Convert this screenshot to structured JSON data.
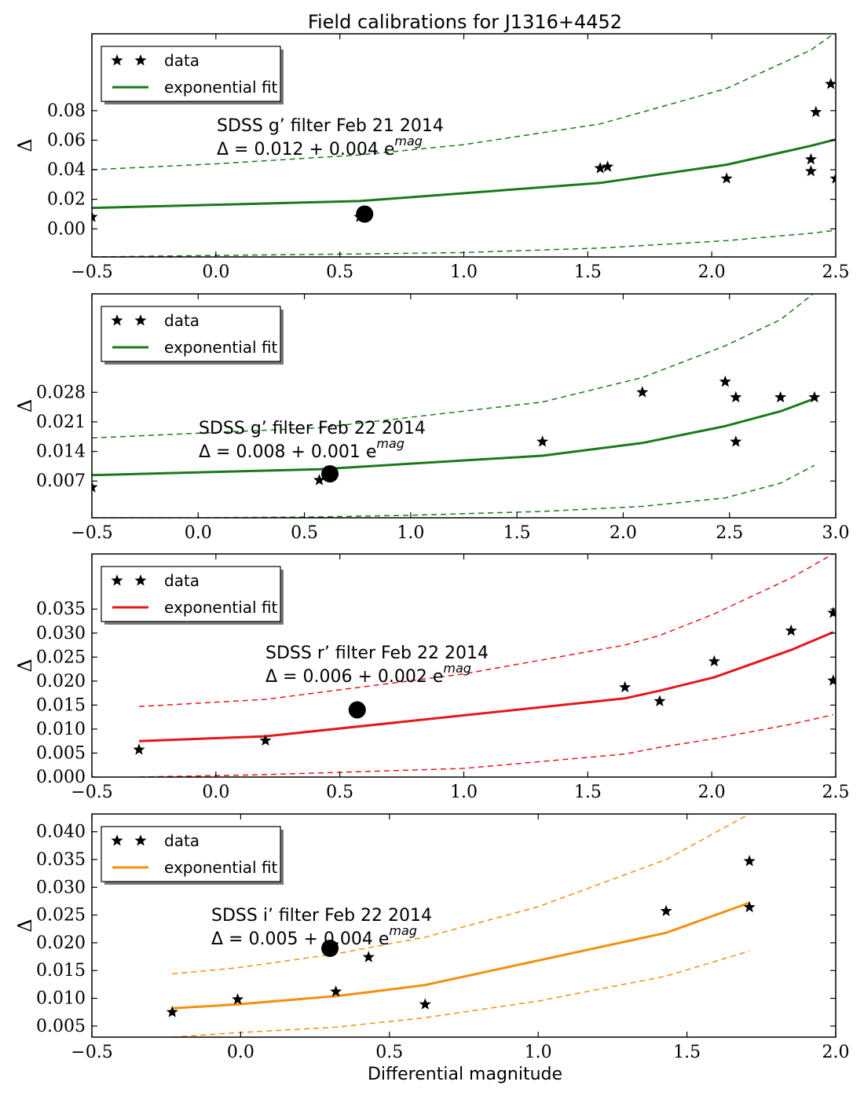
{
  "title": "Field calibrations for J1316+4452",
  "xlabel": "Differential magnitude",
  "chart_data": [
    {
      "type": "scatter",
      "title": "",
      "xlabel": "",
      "ylabel": "Δ",
      "xlim": [
        -0.5,
        2.5
      ],
      "ylim": [
        -0.019,
        0.132
      ],
      "xticks": [
        "−0.5",
        "0.0",
        "0.5",
        "1.0",
        "1.5",
        "2.0",
        "2.5"
      ],
      "xtick_values": [
        -0.5,
        0,
        0.5,
        1.0,
        1.5,
        2.0,
        2.5
      ],
      "yticks": [
        "0.00",
        "0.02",
        "0.04",
        "0.06",
        "0.08"
      ],
      "ytick_values": [
        0.0,
        0.02,
        0.04,
        0.06,
        0.08
      ],
      "color": "#1a7a1a",
      "legend": [
        "data",
        "exponential fit"
      ],
      "annotation": {
        "line1": "SDSS g’ filter Feb 21 2014",
        "line2_prefix": "Δ = 0.012 + 0.004 e",
        "line2_sup": "mag"
      },
      "data_points": {
        "x": [
          -0.5,
          0.58,
          1.55,
          1.58,
          2.06,
          2.4,
          2.4,
          2.42,
          2.48,
          2.5
        ],
        "y": [
          0.008,
          0.008,
          0.041,
          0.042,
          0.034,
          0.039,
          0.047,
          0.079,
          0.098,
          0.034
        ]
      },
      "target": {
        "x": 0.6,
        "y": 0.01
      },
      "fit": {
        "x": [
          -0.5,
          0.58,
          1.55,
          2.06,
          2.4,
          2.5
        ],
        "y": [
          0.0142,
          0.0188,
          0.0311,
          0.0434,
          0.0562,
          0.0605
        ]
      },
      "fit_upper": {
        "x": [
          -0.5,
          0.0,
          0.58,
          1.0,
          1.55,
          2.06,
          2.4,
          2.5
        ],
        "y": [
          0.04,
          0.044,
          0.05,
          0.057,
          0.071,
          0.095,
          0.121,
          0.133
        ]
      },
      "fit_lower": {
        "x": [
          -0.5,
          0.0,
          0.58,
          1.0,
          1.55,
          2.06,
          2.4,
          2.5
        ],
        "y": [
          -0.019,
          -0.018,
          -0.017,
          -0.016,
          -0.013,
          -0.008,
          -0.003,
          -0.001
        ]
      }
    },
    {
      "type": "scatter",
      "title": "",
      "xlabel": "",
      "ylabel": "Δ",
      "xlim": [
        -0.5,
        3.0
      ],
      "ylim": [
        -0.0017,
        0.0513
      ],
      "xticks": [
        "−0.5",
        "0.0",
        "0.5",
        "1.0",
        "1.5",
        "2.0",
        "2.5",
        "3.0"
      ],
      "xtick_values": [
        -0.5,
        0,
        0.5,
        1.0,
        1.5,
        2.0,
        2.5,
        3.0
      ],
      "yticks": [
        "0.007",
        "0.014",
        "0.021",
        "0.028"
      ],
      "ytick_values": [
        0.007,
        0.014,
        0.021,
        0.028
      ],
      "color": "#1a7a1a",
      "legend": [
        "data",
        "exponential fit"
      ],
      "annotation": {
        "line1": "SDSS g’ filter Feb 22 2014",
        "line2_prefix": "Δ = 0.008 + 0.001 e",
        "line2_sup": "mag"
      },
      "data_points": {
        "x": [
          -0.5,
          0.57,
          1.62,
          2.09,
          2.48,
          2.53,
          2.53,
          2.74,
          2.9
        ],
        "y": [
          0.0055,
          0.0072,
          0.0163,
          0.028,
          0.0305,
          0.0268,
          0.0163,
          0.0268,
          0.0268
        ]
      },
      "target": {
        "x": 0.62,
        "y": 0.0087
      },
      "fit": {
        "x": [
          -0.5,
          0.57,
          1.62,
          2.09,
          2.48,
          2.74,
          2.9
        ],
        "y": [
          0.0084,
          0.0098,
          0.013,
          0.016,
          0.02,
          0.0235,
          0.0265
        ]
      },
      "fit_upper": {
        "x": [
          -0.5,
          0.57,
          1.62,
          2.09,
          2.48,
          2.74,
          2.9
        ],
        "y": [
          0.0172,
          0.0196,
          0.0257,
          0.0315,
          0.039,
          0.0452,
          0.0515
        ]
      },
      "fit_lower": {
        "x": [
          -0.5,
          0.0,
          0.57,
          1.0,
          1.62,
          2.09,
          2.48,
          2.74,
          2.9
        ],
        "y": [
          -0.0017,
          -0.0017,
          -0.0015,
          -0.0011,
          -0.0002,
          0.001,
          0.003,
          0.0065,
          0.0107
        ]
      }
    },
    {
      "type": "scatter",
      "title": "",
      "xlabel": "",
      "ylabel": "Δ",
      "xlim": [
        -0.5,
        2.5
      ],
      "ylim": [
        0.0,
        0.0465
      ],
      "xticks": [
        "−0.5",
        "0.0",
        "0.5",
        "1.0",
        "1.5",
        "2.0",
        "2.5"
      ],
      "xtick_values": [
        -0.5,
        0,
        0.5,
        1.0,
        1.5,
        2.0,
        2.5
      ],
      "yticks": [
        "0.000",
        "0.005",
        "0.010",
        "0.015",
        "0.020",
        "0.025",
        "0.030",
        "0.035"
      ],
      "ytick_values": [
        0.0,
        0.005,
        0.01,
        0.015,
        0.02,
        0.025,
        0.03,
        0.035
      ],
      "color": "#e8151b",
      "legend": [
        "data",
        "exponential fit"
      ],
      "annotation": {
        "line1": "SDSS r’ filter Feb 22 2014",
        "line2_prefix": "Δ = 0.006 + 0.002 e",
        "line2_sup": "mag"
      },
      "data_points": {
        "x": [
          -0.31,
          0.2,
          1.65,
          1.79,
          2.01,
          2.32,
          2.49,
          2.49
        ],
        "y": [
          0.0057,
          0.0076,
          0.0187,
          0.0158,
          0.0241,
          0.0305,
          0.0342,
          0.0201
        ]
      },
      "target": {
        "x": 0.57,
        "y": 0.014
      },
      "fit": {
        "x": [
          -0.31,
          0.2,
          1.65,
          1.79,
          2.01,
          2.32,
          2.49
        ],
        "y": [
          0.0075,
          0.0085,
          0.0164,
          0.018,
          0.0208,
          0.0265,
          0.0302
        ]
      },
      "fit_upper": {
        "x": [
          -0.31,
          0.2,
          1.0,
          1.65,
          1.79,
          2.01,
          2.32,
          2.49
        ],
        "y": [
          0.0147,
          0.0162,
          0.0215,
          0.0275,
          0.0295,
          0.034,
          0.0415,
          0.0465
        ]
      },
      "fit_lower": {
        "x": [
          -0.31,
          0.2,
          1.0,
          1.65,
          1.79,
          2.01,
          2.32,
          2.49
        ],
        "y": [
          0.0,
          0.0005,
          0.0018,
          0.0048,
          0.0062,
          0.008,
          0.011,
          0.013
        ]
      }
    },
    {
      "type": "scatter",
      "title": "",
      "xlabel": "Differential magnitude",
      "ylabel": "Δ",
      "xlim": [
        -0.5,
        2.0
      ],
      "ylim": [
        0.003,
        0.0432
      ],
      "xticks": [
        "−0.5",
        "0.0",
        "0.5",
        "1.0",
        "1.5",
        "2.0"
      ],
      "xtick_values": [
        -0.5,
        0,
        0.5,
        1.0,
        1.5,
        2.0
      ],
      "yticks": [
        "0.005",
        "0.010",
        "0.015",
        "0.020",
        "0.025",
        "0.030",
        "0.035",
        "0.040"
      ],
      "ytick_values": [
        0.005,
        0.01,
        0.015,
        0.02,
        0.025,
        0.03,
        0.035,
        0.04
      ],
      "color": "#f2900f",
      "legend": [
        "data",
        "exponential fit"
      ],
      "annotation": {
        "line1": "SDSS i’ filter Feb 22 2014",
        "line2_prefix": "Δ = 0.005 + 0.004 e",
        "line2_sup": "mag"
      },
      "data_points": {
        "x": [
          -0.23,
          -0.01,
          0.32,
          0.43,
          0.62,
          1.43,
          1.71,
          1.71
        ],
        "y": [
          0.0075,
          0.0098,
          0.0112,
          0.0174,
          0.0089,
          0.0257,
          0.0264,
          0.0347
        ]
      },
      "target": {
        "x": 0.3,
        "y": 0.019
      },
      "fit": {
        "x": [
          -0.23,
          -0.01,
          0.32,
          0.43,
          0.62,
          1.43,
          1.71
        ],
        "y": [
          0.0082,
          0.0089,
          0.0104,
          0.0111,
          0.0124,
          0.0218,
          0.0272
        ]
      },
      "fit_upper": {
        "x": [
          -0.23,
          -0.01,
          0.32,
          0.62,
          1.0,
          1.43,
          1.71
        ],
        "y": [
          0.0144,
          0.0155,
          0.018,
          0.021,
          0.0265,
          0.035,
          0.0432
        ]
      },
      "fit_lower": {
        "x": [
          -0.23,
          -0.01,
          0.32,
          0.62,
          1.0,
          1.43,
          1.71
        ],
        "y": [
          0.003,
          0.0038,
          0.0048,
          0.0065,
          0.0095,
          0.014,
          0.0185
        ]
      }
    }
  ]
}
